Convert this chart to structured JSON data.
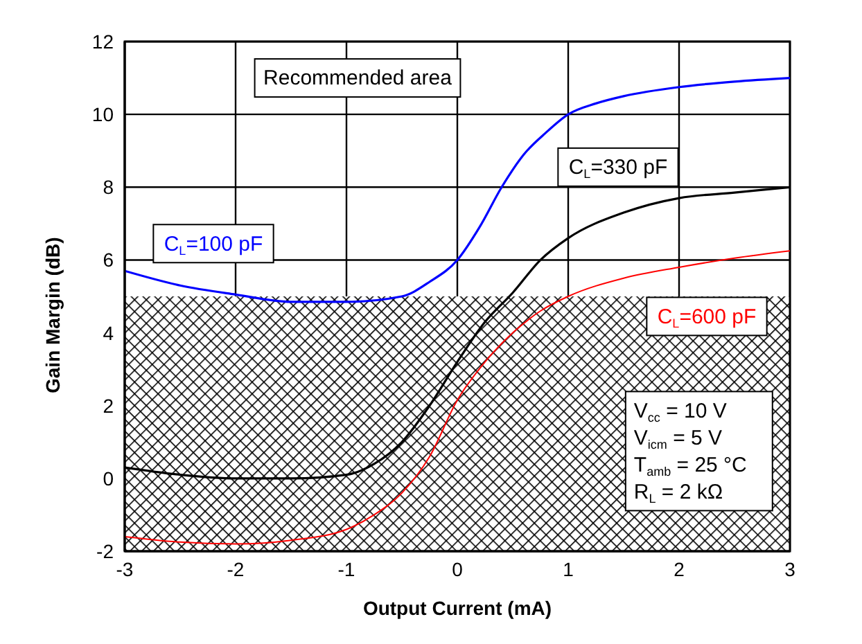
{
  "chart_data": {
    "type": "line",
    "xlabel": "Output Current (mA)",
    "ylabel": "Gain Margin (dB)",
    "xlim": [
      -3,
      3
    ],
    "ylim": [
      -2,
      12
    ],
    "xticks": [
      -3,
      -2,
      -1,
      0,
      1,
      2,
      3
    ],
    "yticks": [
      -2,
      0,
      2,
      4,
      6,
      8,
      10,
      12
    ],
    "grid": true,
    "legend": false,
    "marker": "none",
    "line_style": "solid",
    "series": [
      {
        "name": "C$_{L}$=100 pF",
        "color": "#0000ff",
        "x": [
          -3,
          -2.5,
          -2,
          -1.5,
          -1,
          -0.5,
          -0.25,
          0,
          0.2,
          0.4,
          0.6,
          0.8,
          1,
          1.25,
          1.5,
          2,
          2.5,
          3
        ],
        "values": [
          5.7,
          5.3,
          5.05,
          4.85,
          4.85,
          5.0,
          5.4,
          6.0,
          6.9,
          8.0,
          8.9,
          9.5,
          10.0,
          10.3,
          10.5,
          10.75,
          10.9,
          11.0
        ]
      },
      {
        "name": "C$_{L}$=330 pF",
        "color": "#000000",
        "x": [
          -3,
          -2.5,
          -2,
          -1.5,
          -1,
          -0.75,
          -0.5,
          -0.25,
          0,
          0.25,
          0.5,
          0.75,
          1,
          1.5,
          2,
          2.5,
          3
        ],
        "values": [
          0.3,
          0.1,
          0.0,
          0.0,
          0.1,
          0.4,
          1.0,
          2.0,
          3.2,
          4.3,
          5.1,
          6.0,
          6.6,
          7.3,
          7.7,
          7.85,
          8.0
        ]
      },
      {
        "name": "C$_{L}$=600 pF",
        "color": "#ff0000",
        "x": [
          -3,
          -2.5,
          -2,
          -1.5,
          -1,
          -0.75,
          -0.5,
          -0.25,
          0,
          0.25,
          0.5,
          0.75,
          1,
          1.5,
          2,
          2.5,
          3
        ],
        "values": [
          -1.6,
          -1.75,
          -1.8,
          -1.7,
          -1.4,
          -1.0,
          -0.4,
          0.6,
          2.15,
          3.2,
          4.0,
          4.6,
          5.0,
          5.5,
          5.8,
          6.05,
          6.25
        ]
      }
    ],
    "bands": [
      {
        "axis": "y",
        "from": -2,
        "to": 5,
        "color": "#000000"
      }
    ],
    "annotations": [
      "Recommended area",
      "V$_{cc}$ = 10 V\nV$_{icm}$ = 5 V\nT$_{amb}$ = 25 °C\nR$_{L}$ = 2 kΩ"
    ]
  }
}
